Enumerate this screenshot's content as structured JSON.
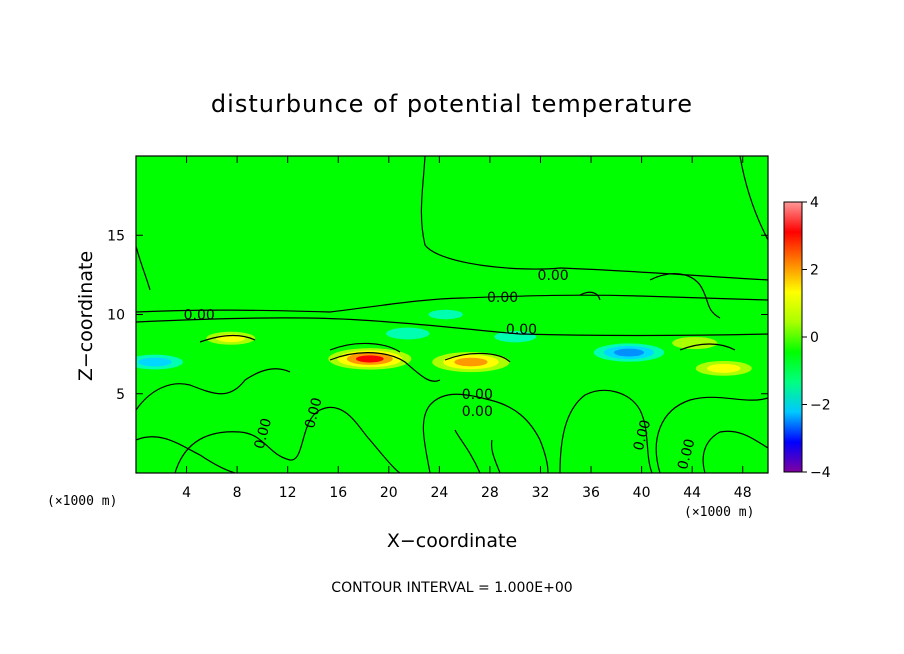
{
  "chart_data": {
    "type": "heatmap",
    "title": "disturbunce of potential temperature",
    "xlabel": "X−coordinate",
    "ylabel": "Z−coordinate",
    "x_unit_left": "(×1000 m)",
    "x_unit_right": "(×1000 m)",
    "xlim": [
      0,
      50
    ],
    "ylim": [
      0,
      20
    ],
    "x_ticks": [
      4,
      8,
      12,
      16,
      20,
      24,
      28,
      32,
      36,
      40,
      44,
      48
    ],
    "x_tick_labels": [
      "4",
      "8",
      "12",
      "16",
      "20",
      "24",
      "28",
      "32",
      "36",
      "40",
      "44",
      "48"
    ],
    "y_ticks": [
      5,
      10,
      15
    ],
    "y_tick_labels": [
      "5",
      "10",
      "15"
    ],
    "colorbar": {
      "range": [
        -4,
        4
      ],
      "ticks": [
        4,
        2,
        0,
        -2,
        -4
      ],
      "tick_labels": [
        "4",
        "2",
        "0",
        "−2",
        "−4"
      ],
      "colors": [
        "#8000a0",
        "#0000ff",
        "#00c8ff",
        "#00ff80",
        "#00ff00",
        "#aaff00",
        "#ffff00",
        "#ff8000",
        "#ff0000",
        "#ff9999"
      ]
    },
    "contour_interval_text": "CONTOUR INTERVAL = 1.000E+00",
    "contour_labels": [
      {
        "text": "0.00",
        "x": 5,
        "z": 10.0
      },
      {
        "text": "0.00",
        "x": 33,
        "z": 12.5
      },
      {
        "text": "0.00",
        "x": 29,
        "z": 11.1
      },
      {
        "text": "0.00",
        "x": 30.5,
        "z": 9.1
      },
      {
        "text": "0.00",
        "x": 27,
        "z": 5.0
      },
      {
        "text": "0.00",
        "x": 27,
        "z": 3.9
      },
      {
        "text": "0.00",
        "x": 10,
        "z": 2.5
      },
      {
        "text": "0.00",
        "x": 14,
        "z": 3.8
      },
      {
        "text": "0.00",
        "x": 40,
        "z": 2.4
      },
      {
        "text": "0.00",
        "x": 43.5,
        "z": 1.2
      }
    ],
    "features": [
      {
        "kind": "warm",
        "x": 18.5,
        "z": 7.2,
        "peak": 3.5
      },
      {
        "kind": "warm",
        "x": 26.5,
        "z": 7.0,
        "peak": 3.2
      },
      {
        "kind": "warm",
        "x": 7.5,
        "z": 8.5,
        "peak": 1.6
      },
      {
        "kind": "warm",
        "x": 46.5,
        "z": 6.6,
        "peak": 2.0
      },
      {
        "kind": "warm",
        "x": 44.2,
        "z": 8.2,
        "peak": 1.4
      },
      {
        "kind": "cold",
        "x": 39.0,
        "z": 7.6,
        "peak": -2.8
      },
      {
        "kind": "cold",
        "x": 1.5,
        "z": 7.0,
        "peak": -2.0
      },
      {
        "kind": "cold",
        "x": 21.5,
        "z": 8.8,
        "peak": -1.3
      },
      {
        "kind": "cold",
        "x": 30.0,
        "z": 8.6,
        "peak": -1.2
      },
      {
        "kind": "cold",
        "x": 24.5,
        "z": 10.0,
        "peak": -0.8
      }
    ]
  }
}
